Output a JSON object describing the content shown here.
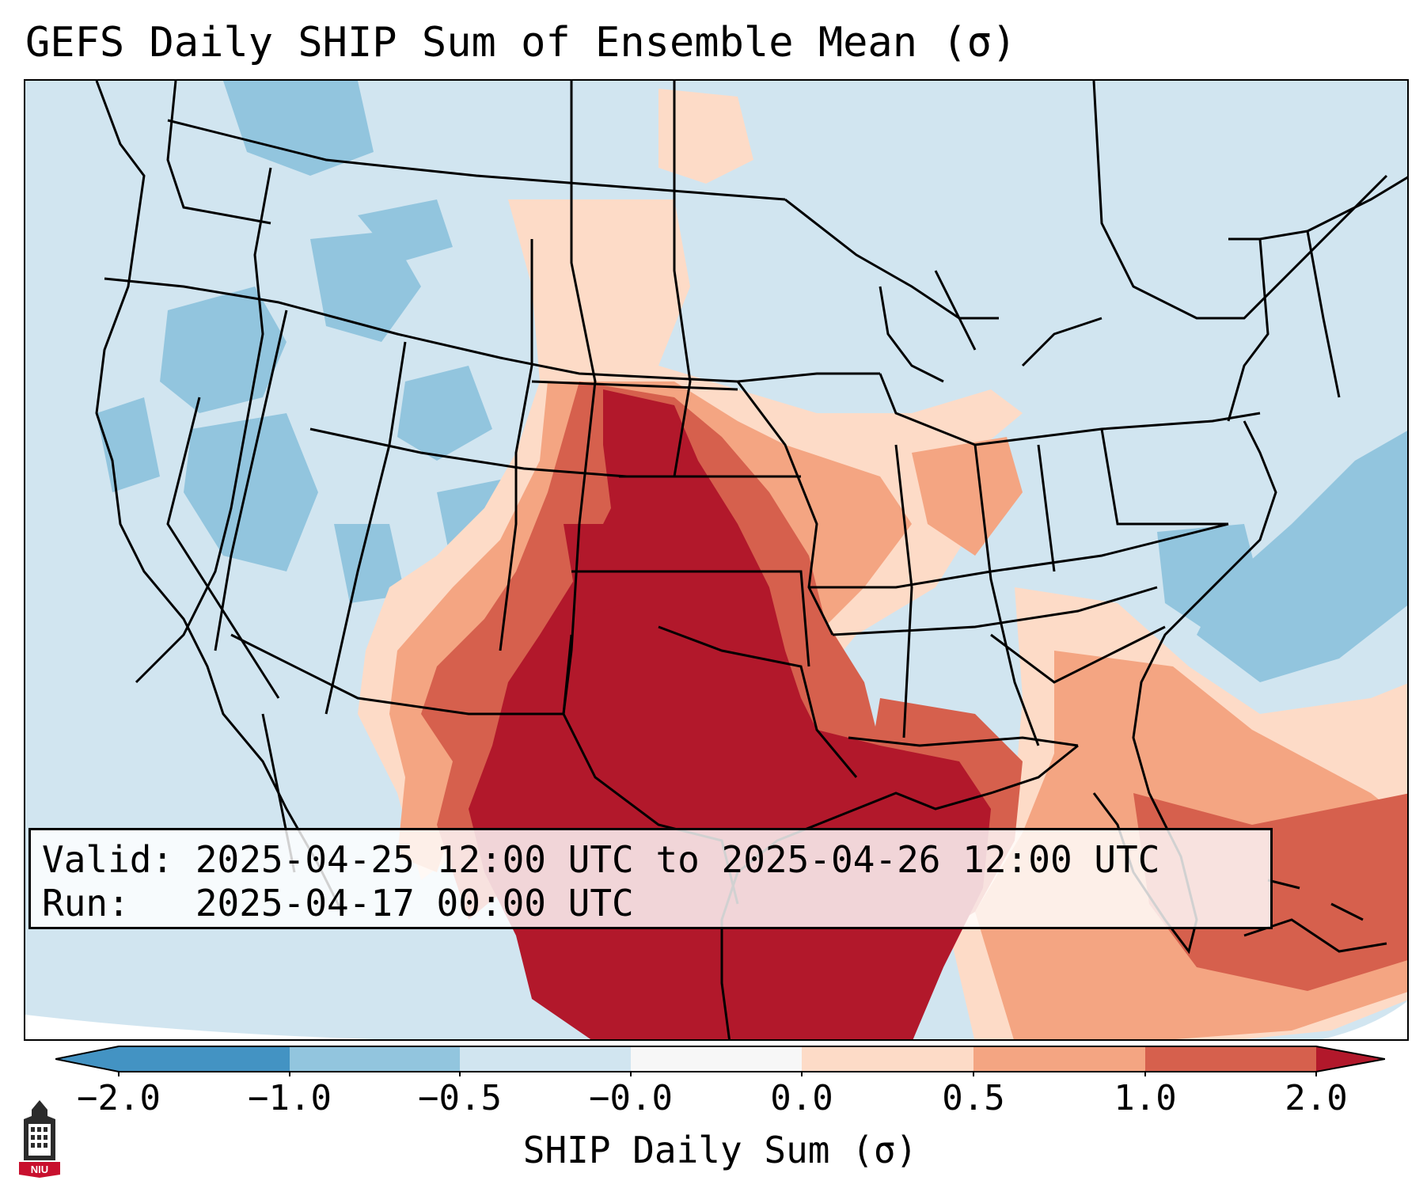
{
  "title": "GEFS Daily SHIP Sum of Ensemble Mean (σ)",
  "info": {
    "valid": "Valid: 2025-04-25 12:00 UTC to 2025-04-26 12:00 UTC",
    "run": "Run:   2025-04-17 00:00 UTC"
  },
  "colorbar": {
    "label": "SHIP Daily Sum (σ)",
    "ticks": [
      "−2.0",
      "−1.0",
      "−0.5",
      "−0.0",
      "0.0",
      "0.5",
      "1.0",
      "2.0"
    ],
    "colors": [
      "#4393c3",
      "#92c5de",
      "#d1e5f0",
      "#f7f7f7",
      "#fddbc7",
      "#f4a582",
      "#d6604d",
      "#b2182b"
    ],
    "extend": "both"
  },
  "logo": {
    "text": "NIU",
    "icon": "university-tower-icon"
  },
  "map": {
    "projection": "lambert-conformal",
    "region": "contiguous-united-states",
    "field": "SHIP daily sum anomaly",
    "max_anomaly_region": "Texas / southern Plains / Gulf of Mexico",
    "background_color": "#d1e5f0"
  }
}
